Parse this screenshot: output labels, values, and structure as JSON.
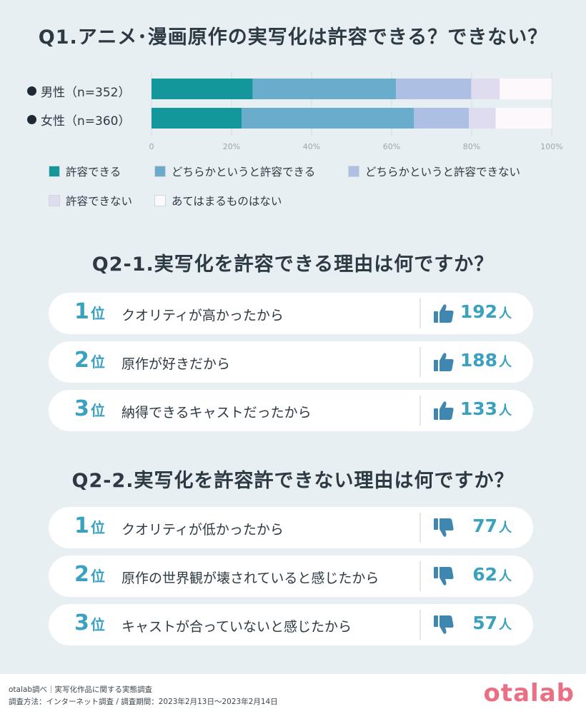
{
  "q1": {
    "title": "Q1.アニメ･漫画原作の実写化は許容できる？できない？",
    "rows": [
      {
        "label": "男性（n=352）"
      },
      {
        "label": "女性（n=360）"
      }
    ]
  },
  "chart_data": {
    "type": "bar",
    "orientation": "horizontal",
    "stacked": true,
    "categories": [
      "男性（n=352）",
      "女性（n=360）"
    ],
    "series": [
      {
        "name": "許容できる",
        "values": [
          25.3,
          22.5
        ],
        "color": "#13979a"
      },
      {
        "name": "どちらかというと許容できる",
        "values": [
          35.8,
          43.1
        ],
        "color": "#6aaccc"
      },
      {
        "name": "どちらかというと許容できない",
        "values": [
          18.8,
          13.7
        ],
        "color": "#aebfe4"
      },
      {
        "name": "許容できない",
        "values": [
          7.1,
          6.7
        ],
        "color": "#dfdcf0"
      },
      {
        "name": "あてはまるものはない",
        "values": [
          13.0,
          14.0
        ],
        "color": "#fdf8fc"
      }
    ],
    "xlim": [
      0,
      100
    ],
    "xticks": [
      "0",
      "20%",
      "40%",
      "60%",
      "80%",
      "100%"
    ],
    "grid": true,
    "legend_position": "bottom"
  },
  "q21": {
    "title": "Q2-1.実写化を許容できる理由は何ですか？",
    "items": [
      {
        "rank": "1",
        "unit": "位",
        "text": "クオリティが高かったから",
        "count": "192",
        "count_unit": "人"
      },
      {
        "rank": "2",
        "unit": "位",
        "text": "原作が好きだから",
        "count": "188",
        "count_unit": "人"
      },
      {
        "rank": "3",
        "unit": "位",
        "text": "納得できるキャストだったから",
        "count": "133",
        "count_unit": "人"
      }
    ]
  },
  "q22": {
    "title": "Q2-2.実写化を許容許できない理由は何ですか？",
    "items": [
      {
        "rank": "1",
        "unit": "位",
        "text": "クオリティが低かったから",
        "count": "77",
        "count_unit": "人"
      },
      {
        "rank": "2",
        "unit": "位",
        "text": "原作の世界観が壊されていると感じたから",
        "count": "62",
        "count_unit": "人"
      },
      {
        "rank": "3",
        "unit": "位",
        "text": "キャストが合っていないと感じたから",
        "count": "57",
        "count_unit": "人"
      }
    ]
  },
  "icons": {
    "up": "thumbs-up-icon",
    "down": "thumbs-down-icon",
    "accent": "#3aa1bf",
    "thumb_color": "#3f87b0"
  },
  "footer": {
    "line1": "otalab調べ｜実写化作品に関する実態調査",
    "line2": "調査方法：インターネット調査 / 調査期間：2023年2月13日〜2023年2月14日",
    "logo": "otalab"
  }
}
